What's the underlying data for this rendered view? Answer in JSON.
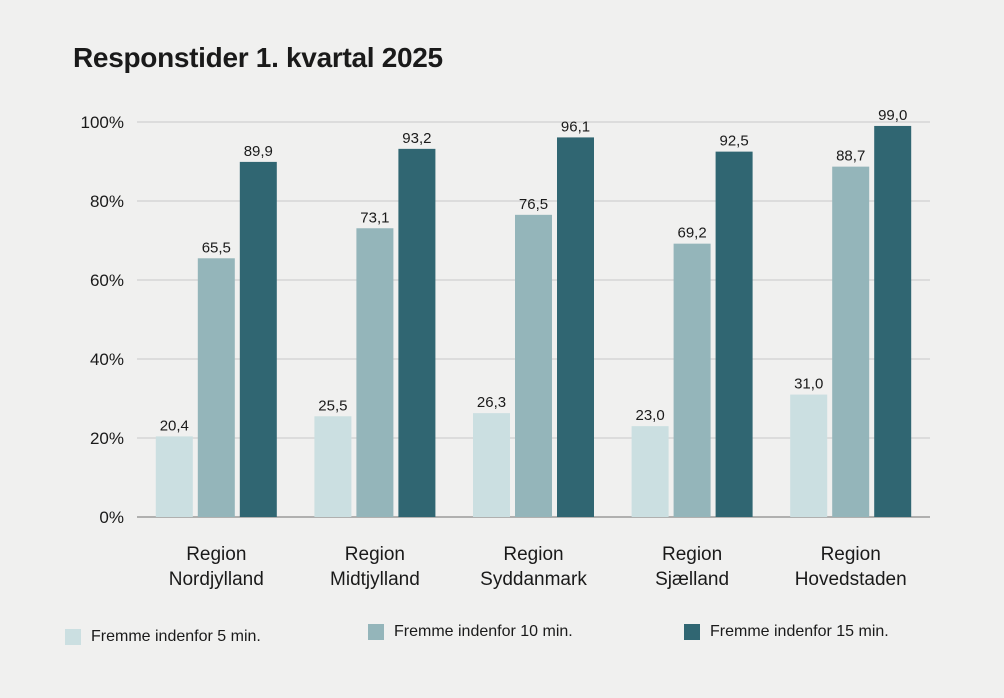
{
  "chart_data": {
    "type": "bar",
    "title": "Responstider 1. kvartal 2025",
    "xlabel": "",
    "ylabel": "",
    "ylim": [
      0,
      100
    ],
    "yticks": [
      "0%",
      "20%",
      "40%",
      "60%",
      "80%",
      "100%"
    ],
    "grid": true,
    "legend_position": "bottom",
    "categories": [
      [
        "Region",
        "Nordjylland"
      ],
      [
        "Region",
        "Midtjylland"
      ],
      [
        "Region",
        "Syddanmark"
      ],
      [
        "Region",
        "Sjælland"
      ],
      [
        "Region",
        "Hovedstaden"
      ]
    ],
    "series": [
      {
        "name": "Fremme indenfor 5 min.",
        "color": "#cbdfe1",
        "values": [
          20.4,
          25.5,
          26.3,
          23.0,
          31.0
        ],
        "labels": [
          "20,4",
          "25,5",
          "26,3",
          "23,0",
          "31,0"
        ]
      },
      {
        "name": "Fremme indenfor 10 min.",
        "color": "#94b5ba",
        "values": [
          65.5,
          73.1,
          76.5,
          69.2,
          88.7
        ],
        "labels": [
          "65,5",
          "73,1",
          "76,5",
          "69,2",
          "88,7"
        ]
      },
      {
        "name": "Fremme indenfor 15 min.",
        "color": "#306672",
        "values": [
          89.9,
          93.2,
          96.1,
          92.5,
          99.0
        ],
        "labels": [
          "89,9",
          "93,2",
          "96,1",
          "92,5",
          "99,0"
        ]
      }
    ]
  },
  "colors": {
    "background": "#f0f0ef",
    "gridline": "#c9c9c9",
    "axis": "#9a9a9a"
  }
}
